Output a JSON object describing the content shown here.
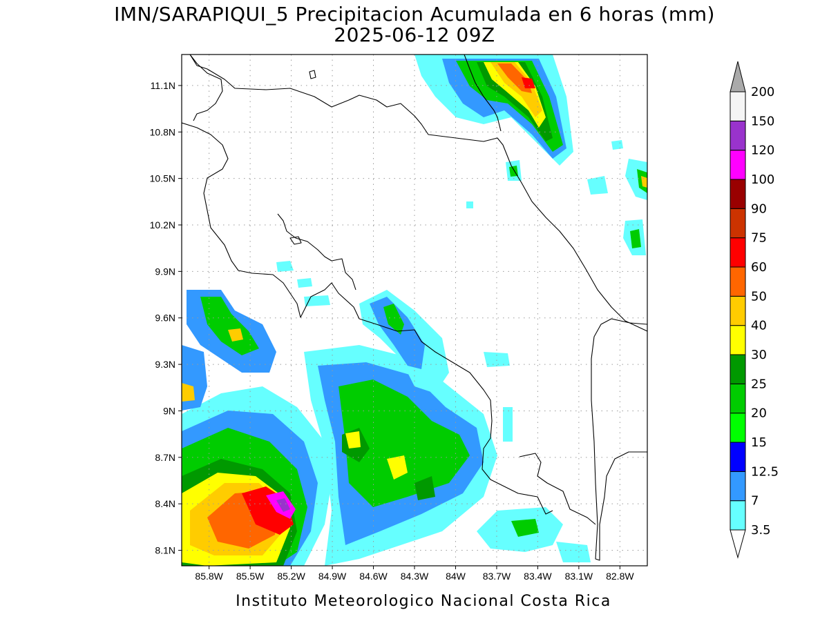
{
  "title": {
    "line1": "IMN/SARAPIQUI_5 Precipitacion Acumulada en 6 horas (mm)",
    "line2": "2025-06-12 09Z"
  },
  "credit": "Instituto Meteorologico Nacional Costa Rica",
  "map": {
    "lon_range": [
      -86.0,
      -82.6
    ],
    "lat_range": [
      8.0,
      11.3
    ],
    "lat_ticks": [
      "11.1N",
      "10.8N",
      "10.5N",
      "10.2N",
      "9.9N",
      "9.6N",
      "9.3N",
      "9N",
      "8.7N",
      "8.4N",
      "8.1N"
    ],
    "lon_ticks": [
      "85.8W",
      "85.5W",
      "85.2W",
      "84.9W",
      "84.6W",
      "84.3W",
      "84W",
      "83.7W",
      "83.4W",
      "83.1W",
      "82.8W"
    ],
    "grid": "dotted"
  },
  "colorbar": {
    "labels": [
      "3.5",
      "7",
      "12.5",
      "15",
      "20",
      "25",
      "30",
      "40",
      "50",
      "60",
      "75",
      "90",
      "100",
      "120",
      "150",
      "200"
    ],
    "colors": [
      "#66ffff",
      "#3399ff",
      "#0000ff",
      "#00ff00",
      "#00cc00",
      "#009900",
      "#ffff00",
      "#ffcc00",
      "#ff6600",
      "#ff0000",
      "#cc3300",
      "#990000",
      "#ff00ff",
      "#9933cc",
      "#f5f5f5"
    ],
    "under_color": "#ffffff",
    "over_color": "#aaaaaa"
  }
}
